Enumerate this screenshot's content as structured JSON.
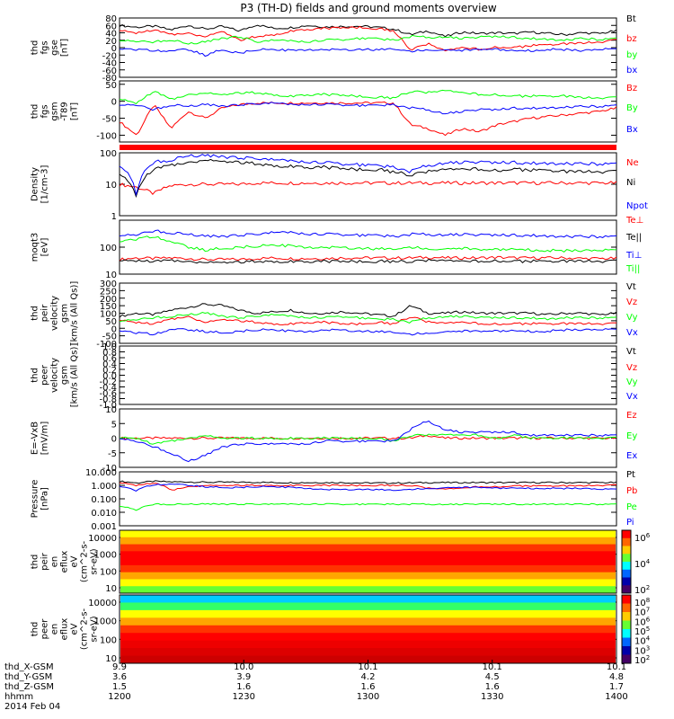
{
  "title": "P3 (TH-D) fields and ground moments overview",
  "colors": {
    "black": "#000000",
    "red": "#ff0000",
    "green": "#00ff00",
    "blue": "#0000ff"
  },
  "chart_data": [
    {
      "type": "line",
      "ylabel": [
        "thd",
        "fgs",
        "gse",
        "[nT]"
      ],
      "ticks": [
        "80",
        "60",
        "40",
        "20",
        "0",
        "-20",
        "-40",
        "-60",
        "-80"
      ],
      "ylim": [
        -80,
        80
      ],
      "series": [
        {
          "name": "Bt",
          "color": "black",
          "values": [
            60,
            55,
            58,
            48,
            60,
            50,
            57,
            45,
            62,
            52,
            54,
            60,
            56,
            57,
            58,
            55,
            50,
            35,
            45,
            30,
            42,
            38,
            40,
            38,
            42,
            38,
            35,
            40,
            38,
            45
          ]
        },
        {
          "name": "bz",
          "color": "red",
          "values": [
            45,
            40,
            48,
            35,
            40,
            30,
            45,
            20,
            30,
            35,
            45,
            50,
            52,
            54,
            55,
            52,
            45,
            -5,
            10,
            -10,
            0,
            -5,
            2,
            0,
            5,
            8,
            10,
            12,
            15,
            20
          ]
        },
        {
          "name": "by",
          "color": "green",
          "values": [
            20,
            18,
            15,
            22,
            10,
            15,
            25,
            30,
            15,
            20,
            18,
            15,
            20,
            22,
            25,
            25,
            20,
            30,
            28,
            30,
            25,
            28,
            30,
            28,
            25,
            22,
            20,
            25,
            22,
            25
          ]
        },
        {
          "name": "bx",
          "color": "blue",
          "values": [
            -5,
            -5,
            -8,
            -10,
            -5,
            -20,
            -5,
            -15,
            -5,
            -5,
            -8,
            -5,
            -5,
            -5,
            -5,
            -5,
            -5,
            -10,
            -5,
            -5,
            -8,
            -5,
            -5,
            -10,
            -8,
            -5,
            -5,
            -8,
            -5,
            -5
          ]
        }
      ]
    },
    {
      "type": "line",
      "ylabel": [
        "thd",
        "fgs",
        "gsm",
        "-T89",
        "[nT]"
      ],
      "ticks": [
        "50",
        "0",
        "-50",
        "-100"
      ],
      "ylim": [
        -120,
        60
      ],
      "series": [
        {
          "name": "Bz",
          "color": "red",
          "values": [
            -60,
            -100,
            -10,
            -80,
            -30,
            -50,
            -20,
            -10,
            -5,
            -5,
            -5,
            -5,
            -5,
            -5,
            -5,
            -5,
            -5,
            -70,
            -80,
            -100,
            -80,
            -90,
            -70,
            -60,
            -50,
            -45,
            -40,
            -35,
            -30,
            -20
          ]
        },
        {
          "name": "By",
          "color": "green",
          "values": [
            5,
            -5,
            30,
            5,
            20,
            25,
            20,
            25,
            25,
            20,
            15,
            20,
            20,
            18,
            15,
            12,
            10,
            30,
            25,
            30,
            25,
            20,
            20,
            15,
            15,
            15,
            15,
            10,
            10,
            10
          ]
        },
        {
          "name": "Bx",
          "color": "blue",
          "values": [
            -10,
            -10,
            -25,
            -10,
            -15,
            -10,
            -15,
            -10,
            -8,
            -5,
            -10,
            -10,
            -10,
            -10,
            -12,
            -12,
            -10,
            -20,
            -25,
            -35,
            -30,
            -25,
            -25,
            -20,
            -20,
            -20,
            -18,
            -15,
            -15,
            -12
          ]
        }
      ]
    },
    {
      "type": "line",
      "ylabel": [
        "Density",
        "[1/cm-3]"
      ],
      "ticks": [
        "100",
        "10",
        "1"
      ],
      "log": true,
      "ylim": [
        1,
        100
      ],
      "series": [
        {
          "name": "Ne",
          "color": "red",
          "values": [
            10,
            8,
            5,
            9,
            10,
            10,
            10,
            10,
            11,
            11,
            11,
            11,
            11,
            11,
            11,
            11,
            11,
            11,
            11,
            11,
            11,
            11,
            11,
            11,
            11,
            11,
            11,
            11,
            11,
            11
          ]
        },
        {
          "name": "Ni",
          "color": "black",
          "values": [
            20,
            4,
            30,
            40,
            50,
            60,
            55,
            50,
            45,
            40,
            38,
            35,
            35,
            32,
            30,
            30,
            25,
            20,
            25,
            28,
            30,
            30,
            28,
            30,
            28,
            28,
            25,
            25,
            25,
            25
          ]
        },
        {
          "name": "Npot",
          "color": "blue",
          "values": [
            40,
            4,
            50,
            60,
            80,
            80,
            75,
            70,
            65,
            60,
            55,
            50,
            48,
            45,
            42,
            40,
            35,
            25,
            40,
            50,
            50,
            50,
            48,
            50,
            48,
            45,
            45,
            45,
            45,
            45
          ]
        }
      ]
    },
    {
      "type": "line",
      "ylabel": [
        "moqt3",
        "[eV]"
      ],
      "ticks": [
        "100",
        "10"
      ],
      "log": true,
      "ylim": [
        10,
        1000
      ],
      "series": [
        {
          "name": "Te⊥",
          "color": "red",
          "values": [
            35,
            40,
            38,
            40,
            38,
            35,
            35,
            35,
            38,
            40,
            38,
            38,
            38,
            40,
            40,
            40,
            40,
            40,
            42,
            40,
            40,
            40,
            42,
            40,
            40,
            40,
            40,
            38,
            38,
            38
          ]
        },
        {
          "name": "Te||",
          "color": "black",
          "values": [
            30,
            32,
            30,
            32,
            30,
            28,
            28,
            28,
            30,
            30,
            30,
            30,
            30,
            30,
            30,
            30,
            30,
            30,
            32,
            30,
            30,
            30,
            32,
            30,
            30,
            30,
            30,
            30,
            30,
            30
          ]
        },
        {
          "name": "Ti⊥",
          "color": "blue",
          "values": [
            280,
            300,
            400,
            350,
            300,
            250,
            250,
            280,
            300,
            350,
            350,
            300,
            300,
            300,
            280,
            280,
            250,
            300,
            300,
            300,
            300,
            280,
            280,
            280,
            280,
            250,
            250,
            250,
            250,
            250
          ]
        },
        {
          "name": "Ti||",
          "color": "green",
          "values": [
            150,
            200,
            250,
            150,
            100,
            80,
            90,
            100,
            110,
            120,
            110,
            100,
            100,
            100,
            90,
            90,
            80,
            100,
            90,
            90,
            90,
            80,
            80,
            80,
            80,
            75,
            75,
            75,
            75,
            75
          ]
        }
      ]
    },
    {
      "type": "line",
      "ylabel": [
        "thd",
        "peir",
        "velocity",
        "gsm",
        "[km/s (All Qs)]"
      ],
      "ticks": [
        "300",
        "250",
        "200",
        "150",
        "100",
        "50",
        "0",
        "-50",
        "-100"
      ],
      "ylim": [
        -100,
        300
      ],
      "series": [
        {
          "name": "Vt",
          "color": "black",
          "values": [
            80,
            100,
            90,
            120,
            140,
            160,
            150,
            120,
            100,
            110,
            120,
            100,
            100,
            110,
            100,
            90,
            80,
            150,
            100,
            100,
            110,
            100,
            100,
            100,
            100,
            90,
            100,
            100,
            90,
            100
          ]
        },
        {
          "name": "Vz",
          "color": "red",
          "values": [
            50,
            40,
            30,
            60,
            80,
            40,
            60,
            50,
            40,
            30,
            30,
            40,
            40,
            30,
            30,
            40,
            30,
            80,
            40,
            30,
            40,
            30,
            30,
            30,
            30,
            30,
            30,
            30,
            30,
            30
          ]
        },
        {
          "name": "Vy",
          "color": "green",
          "values": [
            50,
            60,
            70,
            80,
            90,
            100,
            80,
            70,
            80,
            90,
            80,
            70,
            70,
            80,
            70,
            60,
            60,
            40,
            70,
            80,
            80,
            70,
            70,
            70,
            70,
            60,
            70,
            70,
            70,
            70
          ]
        },
        {
          "name": "Vx",
          "color": "blue",
          "values": [
            -20,
            -30,
            -40,
            -10,
            -10,
            -20,
            -30,
            -20,
            -10,
            -10,
            -20,
            -20,
            -10,
            -10,
            -20,
            -20,
            -30,
            -40,
            -30,
            -20,
            -20,
            -20,
            -20,
            -20,
            -20,
            -20,
            -10,
            -10,
            -10,
            -10
          ]
        }
      ]
    },
    {
      "type": "line",
      "ylabel": [
        "thd",
        "peer",
        "velocity",
        "gsm",
        "[km/s (All Qs)]"
      ],
      "ticks": [
        "1.0",
        "0.8",
        "0.6",
        "0.4",
        "0.2",
        "0.0",
        "-0.2",
        "-0.4",
        "-0.6",
        "-0.8",
        "-1.0"
      ],
      "ylim": [
        -1,
        1
      ],
      "series": [
        {
          "name": "Vt",
          "color": "black",
          "values": []
        },
        {
          "name": "Vz",
          "color": "red",
          "values": []
        },
        {
          "name": "Vy",
          "color": "green",
          "values": []
        },
        {
          "name": "Vx",
          "color": "blue",
          "values": []
        }
      ]
    },
    {
      "type": "line",
      "ylabel": [
        "E=-VxB",
        "[mV/m]"
      ],
      "ticks": [
        "10",
        "5",
        "0",
        "-5",
        "-10"
      ],
      "ylim": [
        -10,
        10
      ],
      "series": [
        {
          "name": "Ez",
          "color": "red",
          "values": [
            0,
            0,
            0,
            0,
            0,
            0,
            0,
            0,
            0,
            0,
            0,
            0,
            0,
            0,
            0,
            0,
            0,
            0,
            1,
            0,
            0,
            0,
            0,
            0,
            0,
            0,
            0,
            0,
            0,
            0
          ]
        },
        {
          "name": "Ey",
          "color": "green",
          "values": [
            0,
            0,
            -2,
            -1,
            0,
            1,
            0,
            0,
            0,
            0,
            0,
            0,
            0,
            0,
            0,
            0,
            -1,
            1,
            1,
            1,
            1,
            1,
            0,
            1,
            0,
            0,
            0,
            0,
            0,
            0
          ]
        },
        {
          "name": "Ex",
          "color": "blue",
          "values": [
            0,
            -1,
            -3,
            -5,
            -8,
            -6,
            -3,
            -2,
            -2,
            -2,
            -2,
            -2,
            -1,
            -1,
            -1,
            -1,
            -1,
            3,
            6,
            3,
            2,
            2,
            2,
            2,
            1,
            1,
            1,
            1,
            1,
            1
          ]
        }
      ]
    },
    {
      "type": "line",
      "ylabel": [
        "Pressure",
        "[nPa]"
      ],
      "ticks": [
        "10.000",
        "1.000",
        "0.100",
        "0.010",
        "0.001"
      ],
      "log": true,
      "ylim": [
        0.001,
        10
      ],
      "series": [
        {
          "name": "Pt",
          "color": "black",
          "values": [
            2,
            1.5,
            2,
            1.8,
            1.8,
            1.7,
            1.7,
            1.7,
            1.7,
            1.6,
            1.6,
            1.6,
            1.6,
            1.6,
            1.5,
            1.5,
            1.5,
            1.5,
            1.6,
            1.6,
            1.6,
            1.6,
            1.6,
            1.6,
            1.6,
            1.6,
            1.6,
            1.6,
            1.6,
            1.6
          ]
        },
        {
          "name": "Pb",
          "color": "red",
          "values": [
            1.5,
            1,
            1.5,
            0.4,
            0.8,
            1,
            1,
            1,
            1,
            1,
            1,
            1,
            1,
            1,
            1,
            1,
            1,
            1,
            0.6,
            0.5,
            0.6,
            0.8,
            0.8,
            0.9,
            0.9,
            0.9,
            0.9,
            0.9,
            1,
            1
          ]
        },
        {
          "name": "Pe",
          "color": "green",
          "values": [
            0.03,
            0.015,
            0.04,
            0.04,
            0.04,
            0.04,
            0.04,
            0.04,
            0.04,
            0.04,
            0.04,
            0.04,
            0.04,
            0.04,
            0.04,
            0.04,
            0.04,
            0.04,
            0.04,
            0.04,
            0.04,
            0.04,
            0.04,
            0.04,
            0.04,
            0.04,
            0.04,
            0.04,
            0.04,
            0.04
          ]
        },
        {
          "name": "Pi",
          "color": "blue",
          "values": [
            0.8,
            0.4,
            1.1,
            1.2,
            1,
            0.8,
            0.7,
            0.7,
            0.8,
            0.8,
            0.7,
            0.6,
            0.5,
            0.5,
            0.5,
            0.5,
            0.4,
            0.5,
            0.6,
            0.7,
            0.7,
            0.7,
            0.6,
            0.6,
            0.6,
            0.6,
            0.6,
            0.6,
            0.5,
            0.5
          ]
        }
      ]
    },
    {
      "type": "heatmap",
      "ylabel": [
        "thd",
        "peir",
        "en",
        "eflux",
        "eV",
        "(cm^2-s-",
        "sr-eV)"
      ],
      "ticks": [
        "10000",
        "1000",
        "100",
        "10"
      ],
      "log": true,
      "colorbar_ticks": [
        "10^6",
        "10^4",
        "10^2"
      ]
    },
    {
      "type": "heatmap",
      "ylabel": [
        "thd",
        "peer",
        "en",
        "eflux",
        "eV",
        "(cm^2-s-",
        "sr-eV)"
      ],
      "ticks": [
        "10000",
        "1000",
        "100",
        "10"
      ],
      "log": true,
      "colorbar_ticks": [
        "10^8",
        "10^7",
        "10^6",
        "10^5",
        "10^4",
        "10^3",
        "10^2"
      ]
    }
  ],
  "legends": [
    [
      "Bt",
      "bz",
      "by",
      "bx"
    ],
    [
      "Bz",
      "By",
      "Bx"
    ],
    [
      "Ne",
      "Ni",
      "Npot"
    ],
    [
      "Te⊥",
      "Te||",
      "Ti⊥",
      "Ti||"
    ],
    [
      "Vt",
      "Vz",
      "Vy",
      "Vx"
    ],
    [
      "Vt",
      "Vz",
      "Vy",
      "Vx"
    ],
    [
      "Ez",
      "Ey",
      "Ex"
    ],
    [
      "Pt",
      "Pb",
      "Pe",
      "Pi"
    ]
  ],
  "xaxis": {
    "row_labels": [
      "thd_X-GSM",
      "thd_Y-GSM",
      "thd_Z-GSM",
      "hhmm",
      "2014 Feb 04"
    ],
    "columns": [
      [
        "9.9",
        "3.6",
        "1.5",
        "1200"
      ],
      [
        "10.0",
        "3.9",
        "1.6",
        "1230"
      ],
      [
        "10.1",
        "4.2",
        "1.6",
        "1300"
      ],
      [
        "10.1",
        "4.5",
        "1.6",
        "1330"
      ],
      [
        "10.1",
        "4.8",
        "1.7",
        "1400"
      ]
    ]
  }
}
